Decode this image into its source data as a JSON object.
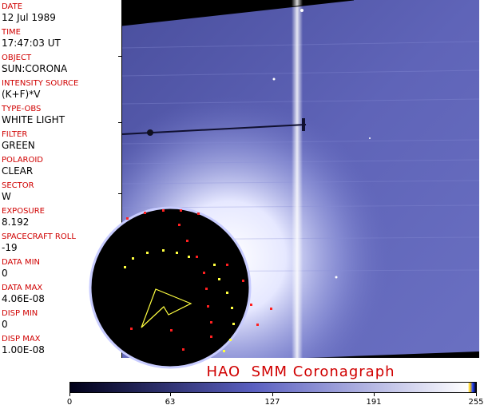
{
  "fields": [
    {
      "key": "DATE",
      "value": "12 Jul 1989"
    },
    {
      "key": "TIME",
      "value": "17:47:03 UT"
    },
    {
      "key": "OBJECT",
      "value": "SUN:CORONA"
    },
    {
      "key": "INTENSITY SOURCE",
      "value": "(K+F)*V"
    },
    {
      "key": "TYPE-OBS",
      "value": "WHITE LIGHT"
    },
    {
      "key": "FILTER",
      "value": "GREEN"
    },
    {
      "key": "POLAROID",
      "value": "CLEAR"
    },
    {
      "key": "SECTOR",
      "value": "W"
    },
    {
      "key": "EXPOSURE",
      "value": "8.192"
    },
    {
      "key": "SPACECRAFT ROLL",
      "value": "-19"
    },
    {
      "key": "DATA MIN",
      "value": "0"
    },
    {
      "key": "DATA MAX",
      "value": "4.06E-08"
    },
    {
      "key": "DISP MIN",
      "value": "0"
    },
    {
      "key": "DISP MAX",
      "value": "1.00E-08"
    }
  ],
  "title": "HAO  SMM Coronagraph",
  "colorbar": {
    "ticks": [
      "0",
      "63",
      "127",
      "191",
      "255"
    ],
    "colors": {
      "dark": "#000018",
      "mid": "#5a5fc0",
      "light": "#ffffff"
    }
  },
  "colors": {
    "label": "#d00000",
    "value": "#000000",
    "marker_red": "#ff2020",
    "marker_yellow": "#ffff40"
  }
}
